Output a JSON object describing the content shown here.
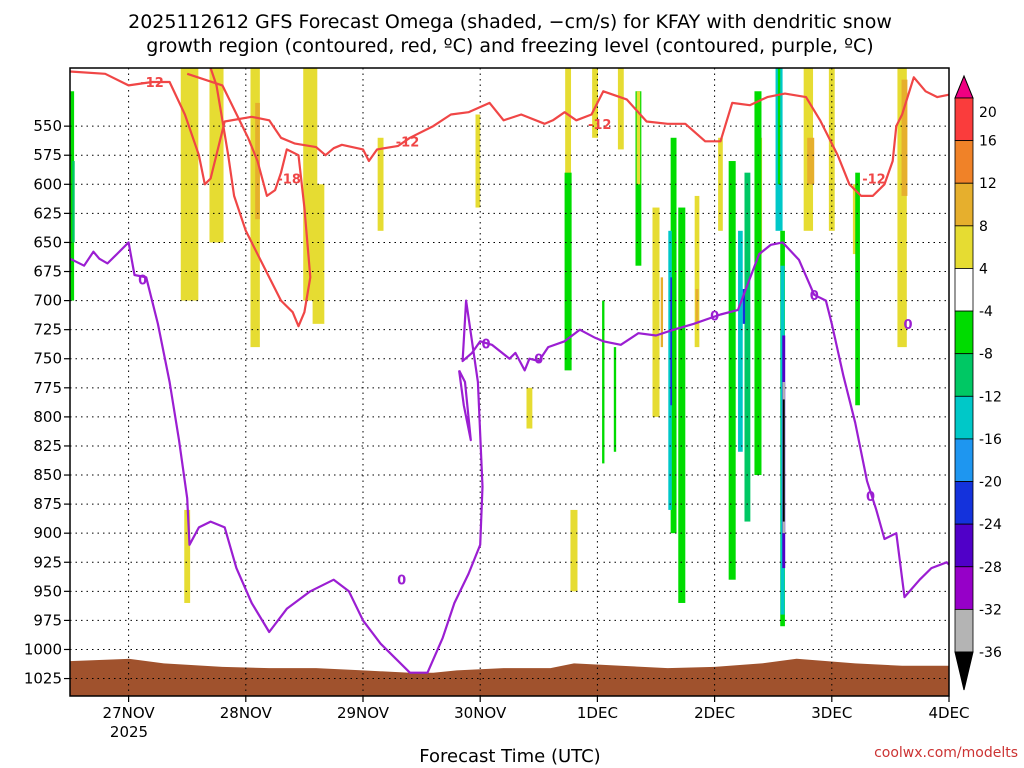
{
  "colors": {
    "omega": [
      "#000000",
      "#b4b4b4",
      "#9600c8",
      "#5000c8",
      "#1432dc",
      "#1e96f0",
      "#00c8c8",
      "#00c864",
      "#00dc00",
      "#ffffff",
      "#e6dc32",
      "#e6af2d",
      "#f08228",
      "#fa3c3c",
      "#f00082"
    ],
    "dgz": "#f04646",
    "freezing": "#9b1ed2",
    "terrain": "#a0522d",
    "grid": "#000000"
  },
  "chart_data": {
    "type": "heatmap",
    "title_line1": "2025112612 GFS Forecast Omega (shaded, −cm/s) for KFAY with dendritic snow",
    "title_line2": "growth region (contoured, red, ºC) and freezing level (contoured, purple, ºC)",
    "xlabel": "Forecast Time (UTC)",
    "credit": "coolwx.com/modelts",
    "x_ticks": [
      "27NOV",
      "28NOV",
      "29NOV",
      "30NOV",
      "1DEC",
      "2DEC",
      "3DEC",
      "4DEC"
    ],
    "x_year": "2025",
    "x_range_days": [
      -0.5,
      7.0
    ],
    "y_ticks": [
      "550",
      "575",
      "600",
      "625",
      "650",
      "675",
      "700",
      "725",
      "750",
      "775",
      "800",
      "825",
      "850",
      "875",
      "900",
      "925",
      "950",
      "975",
      "1000",
      "1025"
    ],
    "y_range_hpa": [
      500,
      1040
    ],
    "colorbar_labels": [
      "20",
      "16",
      "12",
      "8",
      "4",
      "-4",
      "-8",
      "-12",
      "-16",
      "-20",
      "-24",
      "-28",
      "-32",
      "-36"
    ],
    "colorbar_levels": [
      -40,
      -36,
      -32,
      -28,
      -24,
      -20,
      -16,
      -12,
      -8,
      -4,
      4,
      8,
      12,
      16,
      20,
      24
    ],
    "omega_blobs": [
      {
        "t": -0.48,
        "w": 0.03,
        "p1": 520,
        "p2": 700,
        "v": -6
      },
      {
        "t": -0.47,
        "w": 0.02,
        "p1": 580,
        "p2": 650,
        "v": -10
      },
      {
        "t": 0.52,
        "w": 0.15,
        "p1": 500,
        "p2": 700,
        "v": 6
      },
      {
        "t": 0.75,
        "w": 0.12,
        "p1": 500,
        "p2": 650,
        "v": 6
      },
      {
        "t": 1.08,
        "w": 0.08,
        "p1": 500,
        "p2": 740,
        "v": 6
      },
      {
        "t": 1.1,
        "w": 0.04,
        "p1": 530,
        "p2": 630,
        "v": 9
      },
      {
        "t": 1.55,
        "w": 0.12,
        "p1": 500,
        "p2": 700,
        "v": 6
      },
      {
        "t": 1.62,
        "w": 0.1,
        "p1": 600,
        "p2": 720,
        "v": 6
      },
      {
        "t": 0.5,
        "w": 0.05,
        "p1": 880,
        "p2": 960,
        "v": 6
      },
      {
        "t": 2.15,
        "w": 0.05,
        "p1": 560,
        "p2": 640,
        "v": 6
      },
      {
        "t": 2.98,
        "w": 0.04,
        "p1": 540,
        "p2": 620,
        "v": 6
      },
      {
        "t": 3.42,
        "w": 0.05,
        "p1": 775,
        "p2": 810,
        "v": 6
      },
      {
        "t": 3.8,
        "w": 0.06,
        "p1": 880,
        "p2": 950,
        "v": 6
      },
      {
        "t": 3.75,
        "w": 0.05,
        "p1": 500,
        "p2": 600,
        "v": 6
      },
      {
        "t": 3.98,
        "w": 0.05,
        "p1": 500,
        "p2": 560,
        "v": 6
      },
      {
        "t": 4.2,
        "w": 0.05,
        "p1": 500,
        "p2": 570,
        "v": 6
      },
      {
        "t": 3.75,
        "w": 0.06,
        "p1": 590,
        "p2": 760,
        "v": -6
      },
      {
        "t": 4.05,
        "w": 0.02,
        "p1": 700,
        "p2": 840,
        "v": -6
      },
      {
        "t": 4.15,
        "w": 0.02,
        "p1": 740,
        "p2": 830,
        "v": -6
      },
      {
        "t": 4.35,
        "w": 0.05,
        "p1": 520,
        "p2": 670,
        "v": -6
      },
      {
        "t": 4.35,
        "w": 0.03,
        "p1": 520,
        "p2": 600,
        "v": 6
      },
      {
        "t": 4.5,
        "w": 0.06,
        "p1": 620,
        "p2": 800,
        "v": 6
      },
      {
        "t": 4.65,
        "w": 0.05,
        "p1": 560,
        "p2": 900,
        "v": -8
      },
      {
        "t": 4.55,
        "w": 0.02,
        "p1": 680,
        "p2": 740,
        "v": 9
      },
      {
        "t": 4.62,
        "w": 0.03,
        "p1": 640,
        "p2": 880,
        "v": -14
      },
      {
        "t": 4.63,
        "w": 0.015,
        "p1": 680,
        "p2": 790,
        "v": -22
      },
      {
        "t": 4.72,
        "w": 0.06,
        "p1": 620,
        "p2": 960,
        "v": -8
      },
      {
        "t": 4.85,
        "w": 0.04,
        "p1": 610,
        "p2": 740,
        "v": 6
      },
      {
        "t": 4.85,
        "w": 0.025,
        "p1": 690,
        "p2": 720,
        "v": 9
      },
      {
        "t": 5.05,
        "w": 0.04,
        "p1": 560,
        "p2": 640,
        "v": 6
      },
      {
        "t": 5.15,
        "w": 0.06,
        "p1": 580,
        "p2": 940,
        "v": -7
      },
      {
        "t": 5.28,
        "w": 0.05,
        "p1": 590,
        "p2": 890,
        "v": -10
      },
      {
        "t": 5.22,
        "w": 0.04,
        "p1": 640,
        "p2": 830,
        "v": -14
      },
      {
        "t": 5.25,
        "w": 0.02,
        "p1": 690,
        "p2": 720,
        "v": -21
      },
      {
        "t": 5.38,
        "w": 0.05,
        "p1": 560,
        "p2": 660,
        "v": 6
      },
      {
        "t": 5.37,
        "w": 0.06,
        "p1": 520,
        "p2": 850,
        "v": -7
      },
      {
        "t": 5.55,
        "w": 0.06,
        "p1": 500,
        "p2": 640,
        "v": -14
      },
      {
        "t": 5.55,
        "w": 0.02,
        "p1": 500,
        "p2": 600,
        "v": -7
      },
      {
        "t": 5.58,
        "w": 0.04,
        "p1": 640,
        "p2": 980,
        "v": -8
      },
      {
        "t": 5.58,
        "w": 0.035,
        "p1": 670,
        "p2": 970,
        "v": -14
      },
      {
        "t": 5.59,
        "w": 0.025,
        "p1": 730,
        "p2": 930,
        "v": -25
      },
      {
        "t": 5.59,
        "w": 0.02,
        "p1": 770,
        "p2": 900,
        "v": -33
      },
      {
        "t": 5.59,
        "w": 0.016,
        "p1": 785,
        "p2": 890,
        "v": -38
      },
      {
        "t": 5.8,
        "w": 0.08,
        "p1": 500,
        "p2": 640,
        "v": 6
      },
      {
        "t": 5.82,
        "w": 0.06,
        "p1": 560,
        "p2": 600,
        "v": 10
      },
      {
        "t": 6.0,
        "w": 0.05,
        "p1": 500,
        "p2": 640,
        "v": 6
      },
      {
        "t": 6.2,
        "w": 0.04,
        "p1": 600,
        "p2": 660,
        "v": 6
      },
      {
        "t": 6.22,
        "w": 0.04,
        "p1": 590,
        "p2": 790,
        "v": -6
      },
      {
        "t": 6.6,
        "w": 0.08,
        "p1": 500,
        "p2": 740,
        "v": 6
      },
      {
        "t": 6.62,
        "w": 0.05,
        "p1": 510,
        "p2": 610,
        "v": 10
      }
    ],
    "dgz_minus12": [
      [
        -0.5,
        503
      ],
      [
        -0.2,
        505
      ],
      [
        0.0,
        515
      ],
      [
        0.2,
        512
      ],
      [
        0.35,
        512
      ],
      [
        0.48,
        540
      ],
      [
        0.6,
        575
      ],
      [
        0.65,
        600
      ],
      [
        0.7,
        595
      ],
      [
        0.82,
        546
      ],
      [
        1.05,
        542
      ],
      [
        1.2,
        545
      ],
      [
        1.3,
        560
      ],
      [
        1.42,
        565
      ],
      [
        1.6,
        568
      ],
      [
        1.68,
        575
      ],
      [
        1.75,
        569
      ],
      [
        1.82,
        566
      ],
      [
        2.0,
        570
      ],
      [
        2.05,
        580
      ],
      [
        2.12,
        570
      ],
      [
        2.3,
        567
      ],
      [
        2.4,
        560
      ],
      [
        2.6,
        550
      ],
      [
        2.75,
        540
      ],
      [
        2.9,
        538
      ],
      [
        3.08,
        530
      ],
      [
        3.2,
        545
      ],
      [
        3.35,
        540
      ],
      [
        3.55,
        548
      ],
      [
        3.62,
        545
      ],
      [
        3.72,
        538
      ],
      [
        3.82,
        545
      ],
      [
        3.95,
        540
      ],
      [
        4.05,
        520
      ],
      [
        4.25,
        527
      ],
      [
        4.42,
        546
      ],
      [
        4.6,
        548
      ],
      [
        4.75,
        548
      ],
      [
        4.92,
        563
      ],
      [
        5.05,
        563
      ],
      [
        5.15,
        530
      ],
      [
        5.3,
        532
      ],
      [
        5.45,
        525
      ],
      [
        5.6,
        522
      ],
      [
        5.78,
        525
      ],
      [
        5.9,
        545
      ],
      [
        6.05,
        575
      ],
      [
        6.15,
        600
      ],
      [
        6.25,
        610
      ],
      [
        6.35,
        610
      ],
      [
        6.45,
        600
      ],
      [
        6.52,
        580
      ],
      [
        6.55,
        550
      ],
      [
        6.6,
        540
      ],
      [
        6.7,
        508
      ],
      [
        6.8,
        520
      ],
      [
        6.9,
        525
      ],
      [
        7.0,
        523
      ]
    ],
    "dgz_minus18": [
      [
        0.5,
        505
      ],
      [
        0.8,
        515
      ],
      [
        1.02,
        560
      ],
      [
        1.1,
        580
      ],
      [
        1.18,
        610
      ],
      [
        1.25,
        605
      ],
      [
        1.3,
        590
      ],
      [
        1.35,
        570
      ],
      [
        1.45,
        575
      ],
      [
        1.5,
        620
      ],
      [
        1.55,
        680
      ],
      [
        1.5,
        710
      ],
      [
        1.45,
        722
      ],
      [
        1.4,
        710
      ],
      [
        1.3,
        700
      ],
      [
        1.2,
        680
      ],
      [
        1.0,
        640
      ],
      [
        0.9,
        610
      ],
      [
        0.85,
        575
      ],
      [
        0.8,
        545
      ],
      [
        0.75,
        515
      ],
      [
        0.7,
        500
      ]
    ],
    "freezing_level": [
      [
        -0.5,
        664
      ],
      [
        -0.38,
        670
      ],
      [
        -0.3,
        658
      ],
      [
        -0.25,
        664
      ],
      [
        -0.18,
        668
      ],
      [
        -0.1,
        660
      ],
      [
        0.0,
        650
      ],
      [
        0.05,
        678
      ],
      [
        0.15,
        680
      ],
      [
        0.25,
        720
      ],
      [
        0.35,
        770
      ],
      [
        0.43,
        820
      ],
      [
        0.5,
        870
      ],
      [
        0.52,
        910
      ],
      [
        0.6,
        895
      ],
      [
        0.7,
        890
      ],
      [
        0.82,
        895
      ],
      [
        0.92,
        930
      ],
      [
        1.05,
        960
      ],
      [
        1.2,
        985
      ],
      [
        1.35,
        965
      ],
      [
        1.55,
        950
      ],
      [
        1.75,
        940
      ],
      [
        1.88,
        950
      ],
      [
        2.0,
        975
      ],
      [
        2.15,
        995
      ],
      [
        2.4,
        1020
      ],
      [
        2.55,
        1020
      ],
      [
        2.68,
        990
      ],
      [
        2.78,
        960
      ],
      [
        2.9,
        935
      ],
      [
        3.0,
        910
      ],
      [
        3.02,
        860
      ],
      [
        2.98,
        770
      ],
      [
        2.88,
        700
      ],
      [
        2.85,
        752
      ],
      [
        2.93,
        745
      ],
      [
        3.0,
        735
      ],
      [
        3.1,
        738
      ],
      [
        3.25,
        750
      ],
      [
        3.3,
        745
      ],
      [
        3.38,
        760
      ],
      [
        3.42,
        750
      ],
      [
        3.5,
        752
      ],
      [
        3.58,
        740
      ],
      [
        3.72,
        735
      ],
      [
        3.85,
        725
      ],
      [
        3.98,
        732
      ],
      [
        4.05,
        735
      ],
      [
        4.2,
        738
      ],
      [
        4.35,
        728
      ],
      [
        4.5,
        730
      ],
      [
        4.65,
        725
      ],
      [
        4.82,
        720
      ],
      [
        5.05,
        712
      ],
      [
        5.2,
        708
      ],
      [
        5.38,
        660
      ],
      [
        5.48,
        652
      ],
      [
        5.58,
        650
      ],
      [
        5.72,
        665
      ],
      [
        5.85,
        695
      ],
      [
        5.95,
        700
      ],
      [
        6.0,
        720
      ],
      [
        6.1,
        765
      ],
      [
        6.2,
        805
      ],
      [
        6.3,
        855
      ],
      [
        6.38,
        880
      ],
      [
        6.45,
        905
      ],
      [
        6.55,
        900
      ],
      [
        6.62,
        955
      ],
      [
        6.75,
        940
      ],
      [
        6.85,
        930
      ],
      [
        6.98,
        925
      ],
      [
        7.0,
        927
      ]
    ],
    "freezing_inlet": [
      [
        2.82,
        760
      ],
      [
        2.87,
        770
      ],
      [
        2.92,
        820
      ],
      [
        2.86,
        790
      ],
      [
        2.82,
        760
      ]
    ],
    "contour_labels": [
      {
        "text": "-12",
        "t": 0.2,
        "p": 512,
        "series": "dgz"
      },
      {
        "text": "-12",
        "t": 2.38,
        "p": 563,
        "series": "dgz"
      },
      {
        "text": "-12",
        "t": 4.02,
        "p": 548,
        "series": "dgz"
      },
      {
        "text": "-12",
        "t": 6.36,
        "p": 595,
        "series": "dgz"
      },
      {
        "text": "-18",
        "t": 1.37,
        "p": 595,
        "series": "dgz"
      },
      {
        "text": "0",
        "t": 0.12,
        "p": 682,
        "series": "freezing"
      },
      {
        "text": "0",
        "t": 2.33,
        "p": 940,
        "series": "freezing"
      },
      {
        "text": "0",
        "t": 3.05,
        "p": 737,
        "series": "freezing"
      },
      {
        "text": "0",
        "t": 3.5,
        "p": 750,
        "series": "freezing"
      },
      {
        "text": "0",
        "t": 5.0,
        "p": 713,
        "series": "freezing"
      },
      {
        "text": "0",
        "t": 5.85,
        "p": 695,
        "series": "freezing"
      },
      {
        "text": "0",
        "t": 6.33,
        "p": 868,
        "series": "freezing"
      },
      {
        "text": "0",
        "t": 6.65,
        "p": 720,
        "series": "freezing"
      }
    ],
    "surface_pressure": [
      [
        -0.5,
        1010
      ],
      [
        0.0,
        1008
      ],
      [
        0.3,
        1012
      ],
      [
        0.8,
        1015
      ],
      [
        1.2,
        1016
      ],
      [
        1.6,
        1016
      ],
      [
        2.0,
        1018
      ],
      [
        2.4,
        1020
      ],
      [
        2.6,
        1020
      ],
      [
        2.8,
        1018
      ],
      [
        3.2,
        1016
      ],
      [
        3.6,
        1016
      ],
      [
        3.8,
        1012
      ],
      [
        4.2,
        1014
      ],
      [
        4.6,
        1016
      ],
      [
        5.0,
        1015
      ],
      [
        5.4,
        1012
      ],
      [
        5.7,
        1008
      ],
      [
        6.2,
        1012
      ],
      [
        6.6,
        1014
      ],
      [
        7.0,
        1014
      ]
    ]
  }
}
